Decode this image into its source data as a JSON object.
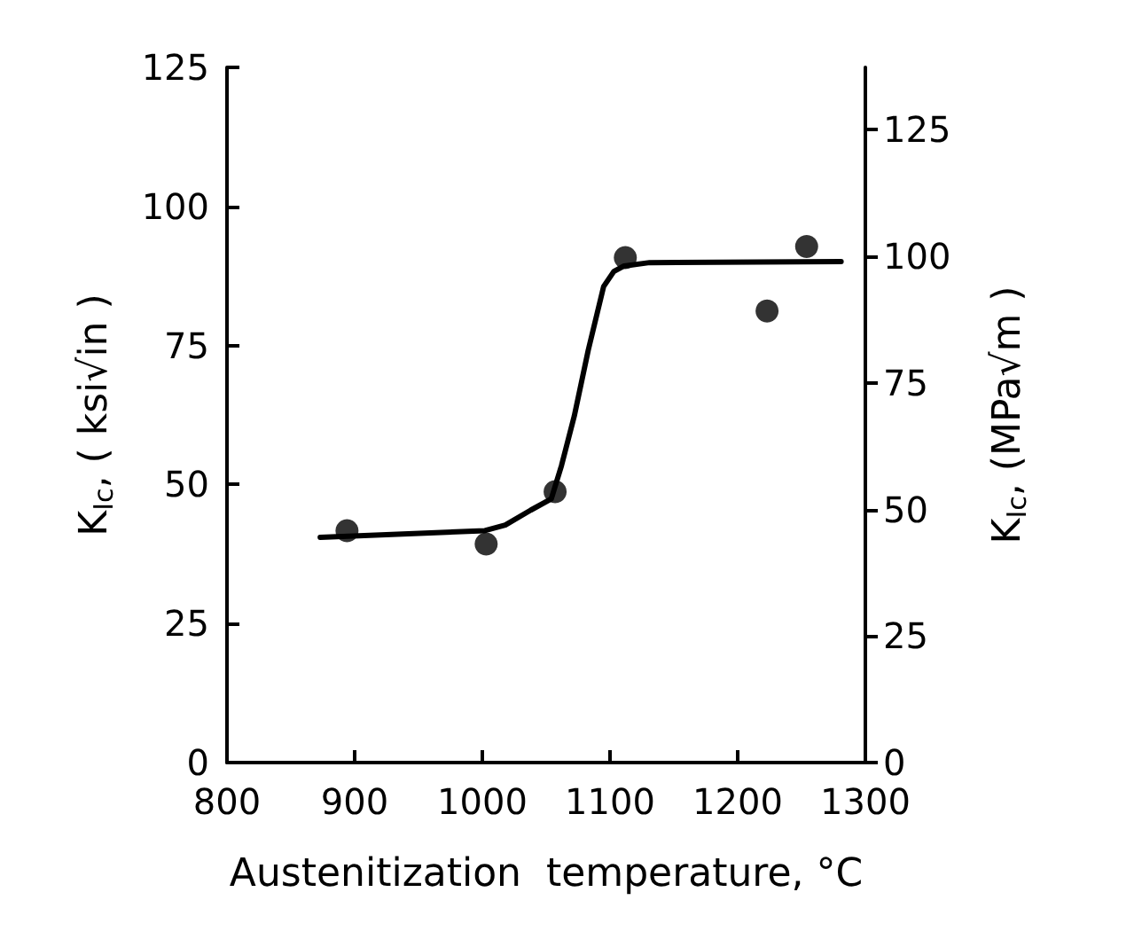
{
  "chart_data": {
    "type": "scatter",
    "xlabel": "Austenitization  temperature, °C",
    "ylabel": "K$_{Ic}$, ( ksi√in )",
    "y2label": "K$_{Ic}$, (MPa√m )",
    "xlim": [
      800,
      1300
    ],
    "xticks": [
      800,
      900,
      1000,
      1100,
      1200,
      1300
    ],
    "ylim": [
      0,
      125
    ],
    "yticks": [
      0,
      25,
      50,
      75,
      100,
      125
    ],
    "y2lim": [
      0,
      137.35
    ],
    "y2ticks": [
      0,
      25,
      50,
      75,
      100,
      125
    ],
    "marker": "circle",
    "series": [
      {
        "color": "#000000",
        "x": [
          894,
          1003,
          1057,
          1112,
          1223,
          1254
        ],
        "values": [
          41.7,
          39.3,
          48.7,
          90.8,
          81.2,
          92.8
        ]
      },
      {
        "type": "line",
        "color": "#000000",
        "marker": "none",
        "line_style": "solid",
        "x": [
          873,
          1002,
          1018,
          1038,
          1054,
          1062,
          1072,
          1083,
          1095,
          1103,
          1111,
          1131,
          1281
        ],
        "values": [
          40.5,
          41.7,
          42.7,
          45.4,
          47.4,
          53.4,
          62.3,
          74.2,
          85.6,
          88.3,
          89.3,
          89.9,
          90.1
        ]
      }
    ]
  }
}
